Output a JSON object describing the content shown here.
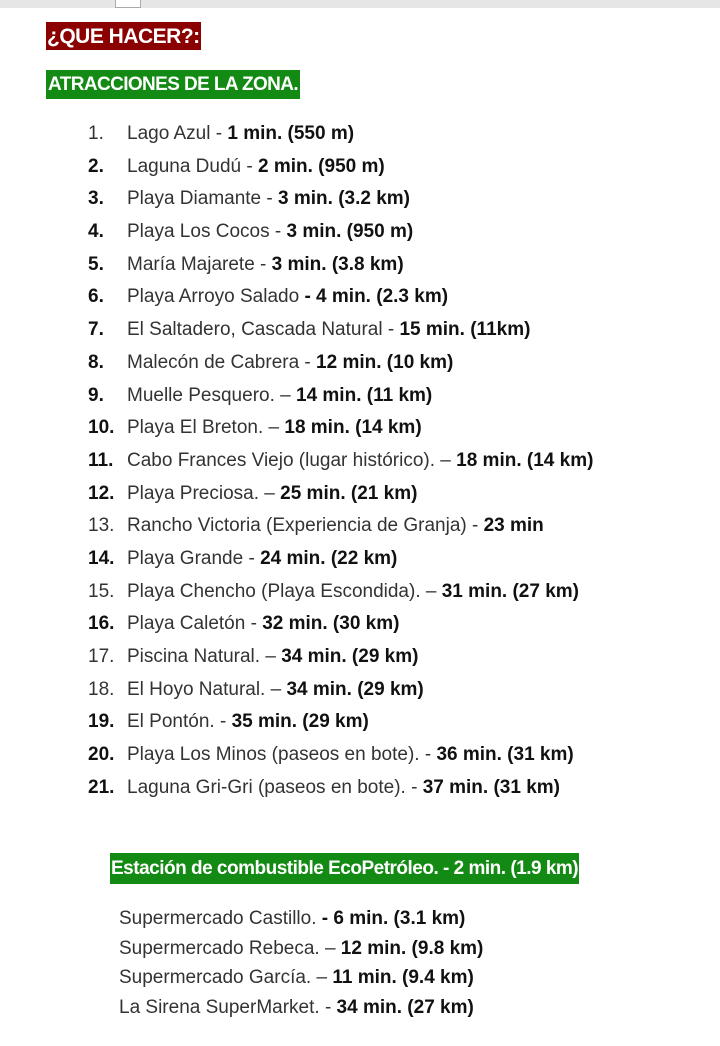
{
  "heading": "¿QUE HACER?:",
  "section_title": "ATRACCIONES DE LA ZONA.",
  "attractions": [
    {
      "num": "1.",
      "num_bold": false,
      "text": "Lago Azul - ",
      "bold": "1 min. (550 m)"
    },
    {
      "num": "2.",
      "num_bold": true,
      "text": "Laguna Dudú - ",
      "bold": "2 min. (950 m)"
    },
    {
      "num": "3.",
      "num_bold": true,
      "text": "Playa Diamante - ",
      "bold": "3 min. (3.2 km)"
    },
    {
      "num": "4.",
      "num_bold": true,
      "text": "Playa Los Cocos - ",
      "bold": "3 min. (950 m)"
    },
    {
      "num": "5.",
      "num_bold": true,
      "text": "María Majarete - ",
      "bold": "3 min. (3.8 km)"
    },
    {
      "num": "6.",
      "num_bold": true,
      "text": "Playa Arroyo Salado ",
      "bold": "- 4 min. (2.3 km)"
    },
    {
      "num": "7.",
      "num_bold": true,
      "text": "El Saltadero, Cascada Natural - ",
      "bold": "15 min. (11km)"
    },
    {
      "num": "8.",
      "num_bold": true,
      "text": "Malecón de Cabrera - ",
      "bold": "12 min. (10 km)"
    },
    {
      "num": "9.",
      "num_bold": true,
      "text": "Muelle Pesquero. – ",
      "bold": "14 min.  (11 km)"
    },
    {
      "num": "10.",
      "num_bold": true,
      "text": "Playa El Breton. – ",
      "bold": "18 min. (14 km)"
    },
    {
      "num": "11.",
      "num_bold": true,
      "text": "Cabo Frances Viejo (lugar histórico). – ",
      "bold": "18 min. (14 km)"
    },
    {
      "num": "12.",
      "num_bold": true,
      "text": "Playa Preciosa. – ",
      "bold": "25 min. (21 km)"
    },
    {
      "num": "13.",
      "num_bold": false,
      "text": "Rancho Victoria (Experiencia de Granja) - ",
      "bold": "23 min"
    },
    {
      "num": "14.",
      "num_bold": true,
      "text": "Playa Grande - ",
      "bold": "24 min. (22 km)"
    },
    {
      "num": "15.",
      "num_bold": false,
      "text": "Playa Chencho (Playa Escondida). – ",
      "bold": "31 min. (27 km)"
    },
    {
      "num": "16.",
      "num_bold": true,
      "text": "Playa Caletón - ",
      "bold": "32 min. (30 km)"
    },
    {
      "num": "17.",
      "num_bold": false,
      "text": "Piscina Natural. – ",
      "bold": "34 min. (29 km)"
    },
    {
      "num": "18.",
      "num_bold": false,
      "text": "El Hoyo Natural. – ",
      "bold": "34 min. (29 km)"
    },
    {
      "num": "19.",
      "num_bold": true,
      "text": "El Pontón. - ",
      "bold": "35 min. (29 km)"
    },
    {
      "num": "20.",
      "num_bold": true,
      "text": "Playa Los Minos (paseos en bote). - ",
      "bold": "36 min. (31 km)"
    },
    {
      "num": "21.",
      "num_bold": true,
      "text": "Laguna Gri-Gri (paseos en bote). -  ",
      "bold": "37 min. (31 km)"
    }
  ],
  "fuel_title": "Estación de combustible EcoPetróleo. - 2 min. (1.9 km)",
  "supermarkets": [
    {
      "text": "Supermercado Castillo. ",
      "bold": "- 6 min. (3.1 km)"
    },
    {
      "text": "Supermercado Rebeca. – ",
      "bold": "12 min. (9.8 km)"
    },
    {
      "text": "Supermercado García. – ",
      "bold": "11 min. (9.4 km)"
    },
    {
      "text": "La Sirena SuperMarket. - ",
      "bold": "34 min. (27 km)"
    }
  ],
  "colors": {
    "heading_bg": "#8b0000",
    "section_bg": "#138a13"
  }
}
